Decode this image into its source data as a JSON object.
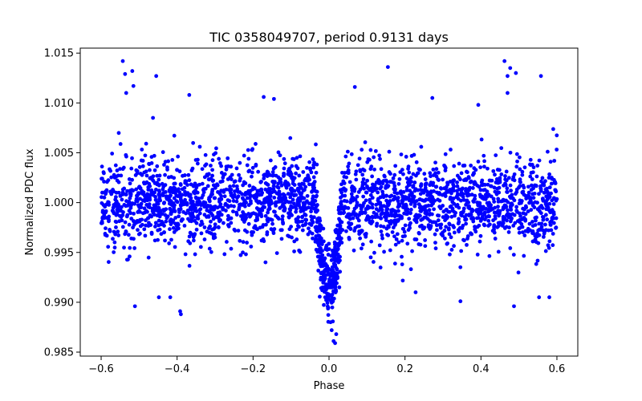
{
  "chart_data": {
    "type": "scatter",
    "title": "TIC 0358049707, period 0.9131 days",
    "xlabel": "Phase",
    "ylabel": "Normalized PDC flux",
    "xlim": [
      -0.655,
      0.655
    ],
    "ylim": [
      0.9846,
      1.0155
    ],
    "xticks": [
      -0.6,
      -0.4,
      -0.2,
      0.0,
      0.2,
      0.4,
      0.6
    ],
    "xtick_labels": [
      "−0.6",
      "−0.4",
      "−0.2",
      "0.0",
      "0.2",
      "0.4",
      "0.6"
    ],
    "yticks": [
      0.985,
      0.99,
      0.995,
      1.0,
      1.005,
      1.01,
      1.015
    ],
    "ytick_labels": [
      "0.985",
      "0.990",
      "0.995",
      "1.000",
      "1.005",
      "1.010",
      "1.015"
    ],
    "grid": false,
    "marker_color": "#0000ff",
    "series": [
      {
        "name": "PDC flux",
        "generator": {
          "count": 2600,
          "x_range": [
            -0.6,
            0.6
          ],
          "baseline": 1.0,
          "scatter_sigma": 0.0022,
          "transit_center": 0.0,
          "transit_halfwidth": 0.035,
          "transit_depth": 0.0085,
          "seed": 358049707
        },
        "points": [
          {
            "x": -0.543,
            "y": 1.0142
          },
          {
            "x": -0.537,
            "y": 1.0129
          },
          {
            "x": -0.518,
            "y": 1.0132
          },
          {
            "x": -0.515,
            "y": 1.0117
          },
          {
            "x": -0.534,
            "y": 1.011
          },
          {
            "x": -0.455,
            "y": 1.0127
          },
          {
            "x": -0.368,
            "y": 1.0108
          },
          {
            "x": -0.172,
            "y": 1.0106
          },
          {
            "x": -0.145,
            "y": 1.0104
          },
          {
            "x": 0.068,
            "y": 1.0116
          },
          {
            "x": 0.155,
            "y": 1.0136
          },
          {
            "x": 0.272,
            "y": 1.0105
          },
          {
            "x": 0.462,
            "y": 1.0142
          },
          {
            "x": 0.477,
            "y": 1.0135
          },
          {
            "x": 0.47,
            "y": 1.0127
          },
          {
            "x": 0.492,
            "y": 1.013
          },
          {
            "x": 0.558,
            "y": 1.0127
          },
          {
            "x": 0.47,
            "y": 1.011
          },
          {
            "x": 0.393,
            "y": 1.0098
          },
          {
            "x": -0.511,
            "y": 0.9896
          },
          {
            "x": -0.448,
            "y": 0.9905
          },
          {
            "x": -0.418,
            "y": 0.9905
          },
          {
            "x": -0.392,
            "y": 0.9891
          },
          {
            "x": -0.39,
            "y": 0.9888
          },
          {
            "x": 0.346,
            "y": 0.9901
          },
          {
            "x": 0.487,
            "y": 0.9896
          },
          {
            "x": 0.228,
            "y": 0.991
          },
          {
            "x": 0.553,
            "y": 0.9905
          },
          {
            "x": 0.58,
            "y": 0.9905
          },
          {
            "x": 0.012,
            "y": 0.9861
          },
          {
            "x": 0.016,
            "y": 0.9859
          },
          {
            "x": 0.007,
            "y": 0.9872
          },
          {
            "x": 0.019,
            "y": 0.9868
          },
          {
            "x": 0.004,
            "y": 0.988
          }
        ]
      }
    ]
  }
}
